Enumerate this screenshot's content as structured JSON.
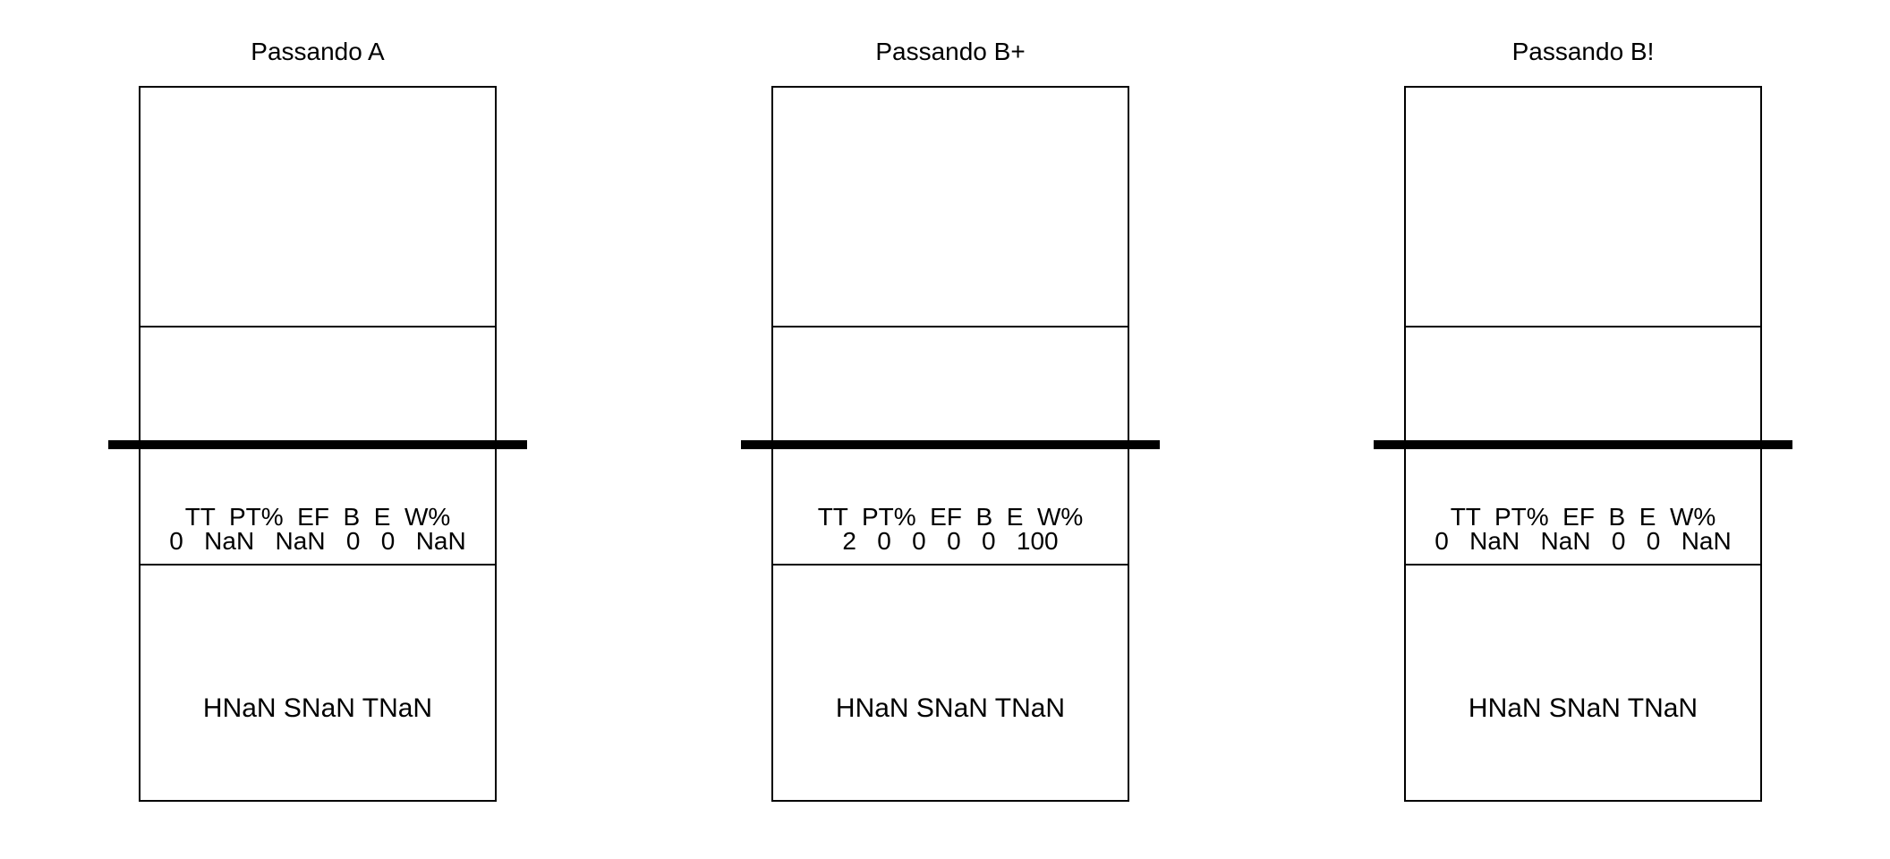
{
  "panels": [
    {
      "title": "Passando A",
      "stats_header": "TT  PT%  EF  B  E  W%",
      "stats_values": "0   NaN   NaN   0   0   NaN",
      "efficiency": "HNaN SNaN TNaN"
    },
    {
      "title": "Passando B+",
      "stats_header": "TT  PT%  EF  B  E  W%",
      "stats_values": "2   0   0   0   0   100",
      "efficiency": "HNaN SNaN TNaN"
    },
    {
      "title": "Passando B!",
      "stats_header": "TT  PT%  EF  B  E  W%",
      "stats_values": "0   NaN   NaN   0   0   NaN",
      "efficiency": "HNaN SNaN TNaN"
    }
  ]
}
